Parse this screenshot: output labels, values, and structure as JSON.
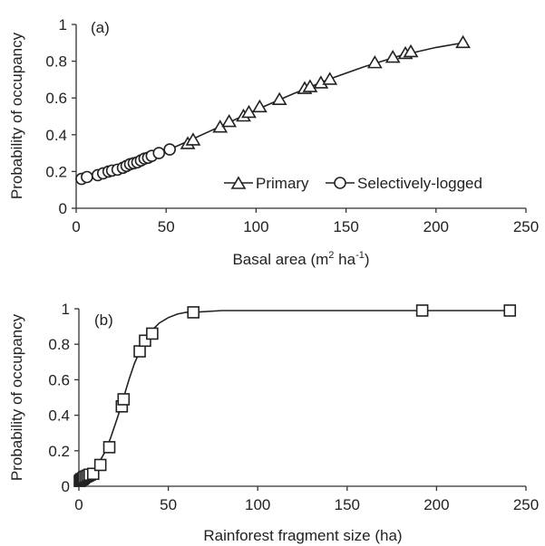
{
  "chart_data": [
    {
      "type": "scatter",
      "panel_label": "(a)",
      "xlabel_main": "Basal area (m",
      "xlabel_sup1": "2",
      "xlabel_mid": " ha",
      "xlabel_sup2": "-1",
      "xlabel_end": ")",
      "ylabel": "Probability of occupancy",
      "xlim": [
        0,
        250
      ],
      "ylim": [
        0,
        1
      ],
      "xticks": [
        "0",
        "50",
        "100",
        "150",
        "200",
        "250"
      ],
      "yticks": [
        "0",
        "0.2",
        "0.4",
        "0.6",
        "0.8",
        "1"
      ],
      "legend_position": "bottom-right",
      "fit_curve": {
        "x": [
          3,
          20,
          40,
          60,
          80,
          100,
          120,
          140,
          160,
          180,
          200,
          215
        ],
        "y": [
          0.165,
          0.205,
          0.27,
          0.355,
          0.445,
          0.535,
          0.62,
          0.7,
          0.77,
          0.83,
          0.875,
          0.9
        ]
      },
      "series": [
        {
          "name": "Primary",
          "marker": "triangle",
          "x": [
            62,
            65,
            80,
            85,
            93,
            96,
            102,
            113,
            127,
            130,
            136,
            141,
            166,
            176,
            183,
            186,
            215
          ],
          "y": [
            0.35,
            0.37,
            0.44,
            0.47,
            0.5,
            0.52,
            0.55,
            0.59,
            0.65,
            0.66,
            0.68,
            0.7,
            0.79,
            0.82,
            0.84,
            0.85,
            0.9
          ]
        },
        {
          "name": "Selectively-logged",
          "marker": "circle",
          "x": [
            3,
            6,
            12,
            15,
            18,
            20,
            23,
            26,
            28,
            30,
            32,
            34,
            36,
            38,
            40,
            42,
            46,
            52
          ],
          "y": [
            0.16,
            0.17,
            0.18,
            0.19,
            0.2,
            0.205,
            0.21,
            0.22,
            0.23,
            0.24,
            0.245,
            0.25,
            0.26,
            0.27,
            0.275,
            0.285,
            0.3,
            0.32
          ]
        }
      ]
    },
    {
      "type": "scatter",
      "panel_label": "(b)",
      "xlabel": "Rainforest fragment size (ha)",
      "ylabel": "Probability of occupancy",
      "xlim": [
        0,
        250
      ],
      "ylim": [
        0,
        1
      ],
      "xticks": [
        "0",
        "50",
        "100",
        "150",
        "200",
        "250"
      ],
      "yticks": [
        "0",
        "0.2",
        "0.4",
        "0.6",
        "0.8",
        "1"
      ],
      "fit_curve": {
        "x": [
          0,
          2,
          5,
          8,
          11,
          15,
          18,
          22,
          25,
          28,
          31,
          34,
          37,
          40,
          45,
          50,
          55,
          60,
          64,
          80,
          100,
          150,
          192,
          240
        ],
        "y": [
          0.03,
          0.04,
          0.06,
          0.09,
          0.13,
          0.2,
          0.28,
          0.4,
          0.5,
          0.6,
          0.69,
          0.76,
          0.82,
          0.87,
          0.92,
          0.95,
          0.97,
          0.98,
          0.98,
          0.99,
          0.99,
          0.99,
          0.99,
          0.99
        ]
      },
      "series": [
        {
          "marker": "square",
          "x": [
            0.5,
            1,
            1.5,
            2,
            2.5,
            3,
            4,
            5,
            6,
            8,
            12,
            17,
            24,
            25,
            34,
            37,
            41,
            64,
            192,
            241
          ],
          "y": [
            0.03,
            0.035,
            0.04,
            0.04,
            0.045,
            0.05,
            0.055,
            0.06,
            0.065,
            0.07,
            0.12,
            0.22,
            0.45,
            0.49,
            0.76,
            0.82,
            0.86,
            0.98,
            0.99,
            0.99
          ]
        }
      ]
    }
  ]
}
